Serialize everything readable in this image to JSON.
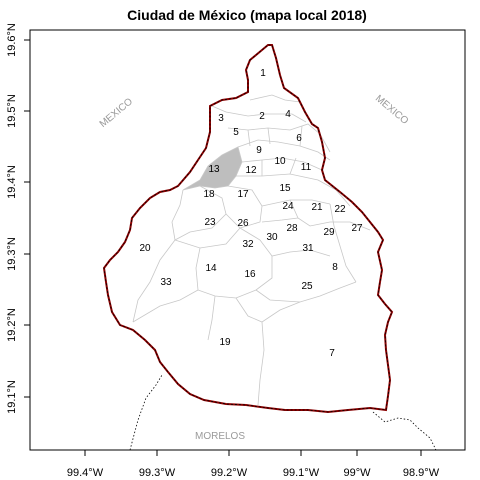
{
  "title": "Ciudad de México (mapa local 2018)",
  "x_ticks": [
    "99.4°W",
    "99.3°W",
    "99.2°W",
    "99.1°W",
    "99°W",
    "98.9°W"
  ],
  "y_ticks": [
    "19.6°N",
    "19.5°N",
    "19.4°N",
    "19.3°N",
    "19.2°N",
    "19.1°N"
  ],
  "neighbors": {
    "west": "MEXICO",
    "east": "MEXICO",
    "south": "MORELOS"
  },
  "highlighted_district": "13",
  "colors": {
    "outline": "#8b0000",
    "district_border": "#c8c8c8",
    "highlight_fill": "#bebebe",
    "frame": "#000000",
    "label_grey": "#9a9a9a"
  },
  "districts": [
    "1",
    "2",
    "3",
    "4",
    "5",
    "6",
    "7",
    "8",
    "9",
    "10",
    "11",
    "12",
    "13",
    "14",
    "15",
    "16",
    "17",
    "18",
    "19",
    "20",
    "21",
    "22",
    "23",
    "24",
    "25",
    "26",
    "27",
    "28",
    "29",
    "30",
    "31",
    "32",
    "33"
  ]
}
